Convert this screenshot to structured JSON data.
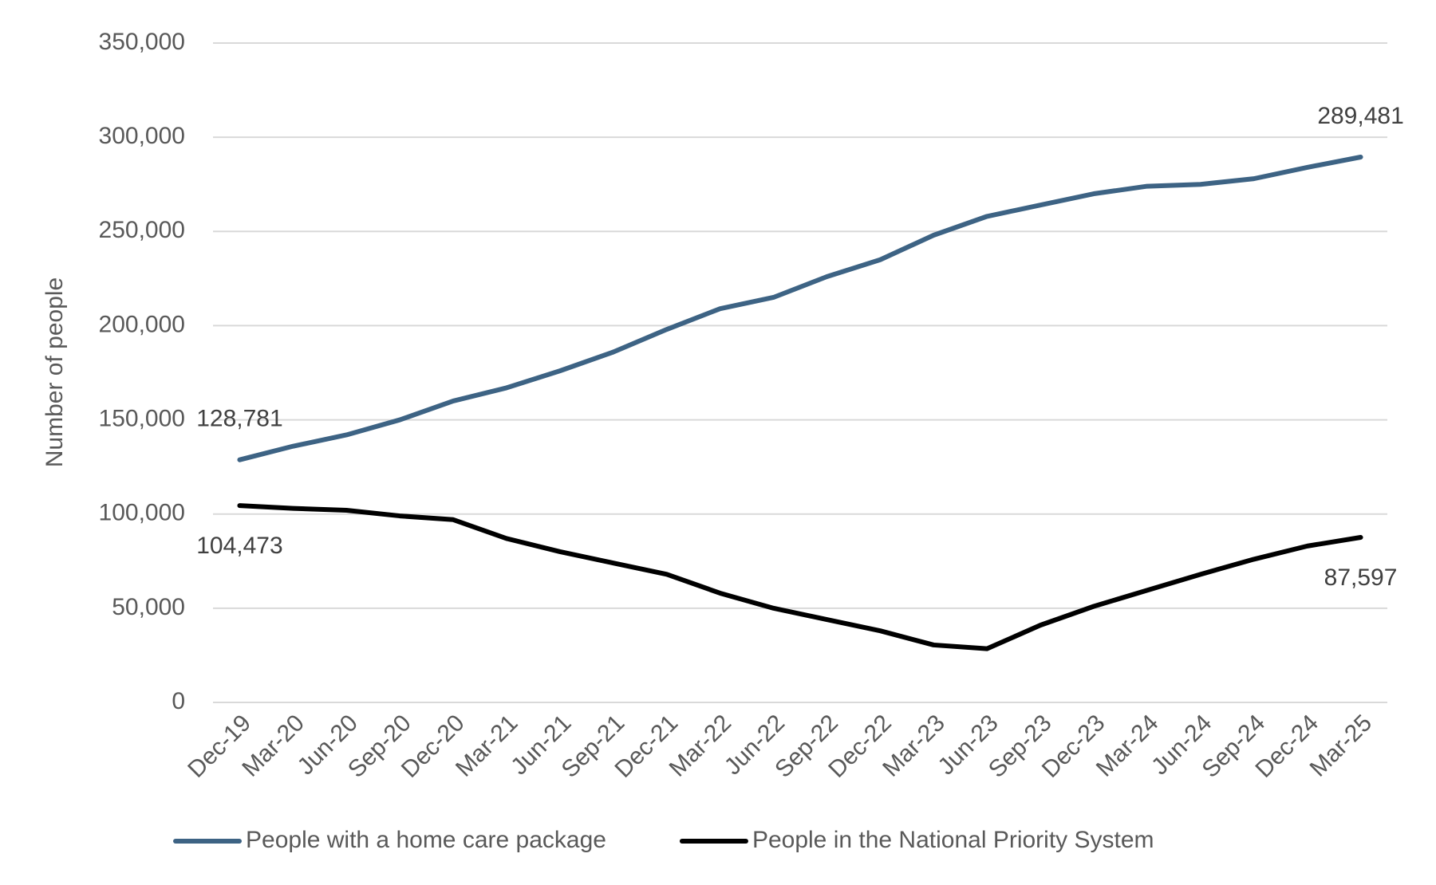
{
  "chart_data": {
    "type": "line",
    "y_label": "Number of people",
    "categories": [
      "Dec-19",
      "Mar-20",
      "Jun-20",
      "Sep-20",
      "Dec-20",
      "Mar-21",
      "Jun-21",
      "Sep-21",
      "Dec-21",
      "Mar-22",
      "Jun-22",
      "Sep-22",
      "Dec-22",
      "Mar-23",
      "Jun-23",
      "Sep-23",
      "Dec-23",
      "Mar-24",
      "Jun-24",
      "Sep-24",
      "Dec-24",
      "Mar-25"
    ],
    "series": [
      {
        "name": "People with a home care package",
        "color": "#3d6384",
        "values": [
          128781,
          136000,
          142000,
          150000,
          160000,
          167000,
          176000,
          186000,
          198000,
          209000,
          215000,
          226000,
          235000,
          248000,
          258000,
          264000,
          270000,
          274000,
          275000,
          278000,
          284000,
          289481
        ],
        "value_labels": [
          "128,781",
          null,
          null,
          null,
          null,
          null,
          null,
          null,
          null,
          null,
          null,
          null,
          null,
          null,
          null,
          null,
          null,
          null,
          null,
          null,
          null,
          "289,481"
        ]
      },
      {
        "name": "People in the National Priority System",
        "color": "#000000",
        "values": [
          104473,
          103000,
          102000,
          99000,
          97000,
          87000,
          80000,
          74000,
          68000,
          58000,
          50000,
          44000,
          38000,
          30500,
          28500,
          41000,
          51000,
          59500,
          68000,
          76000,
          83000,
          87597
        ],
        "value_labels": [
          "104,473",
          null,
          null,
          null,
          null,
          null,
          null,
          null,
          null,
          null,
          null,
          null,
          null,
          null,
          null,
          null,
          null,
          null,
          null,
          null,
          null,
          "87,597"
        ]
      }
    ],
    "ylim": [
      0,
      350000
    ],
    "yticks": [
      0,
      {
        "value": 50000,
        "label": "50,000"
      },
      {
        "value": 100000,
        "label": "100,000"
      },
      {
        "value": 150000,
        "label": "150,000"
      },
      {
        "value": 200000,
        "label": "200,000"
      },
      {
        "value": 250000,
        "label": "250,000"
      },
      {
        "value": 300000,
        "label": "300,000"
      },
      {
        "value": 350000,
        "label": "350,000"
      }
    ],
    "grid": true,
    "legend": "bottom"
  }
}
